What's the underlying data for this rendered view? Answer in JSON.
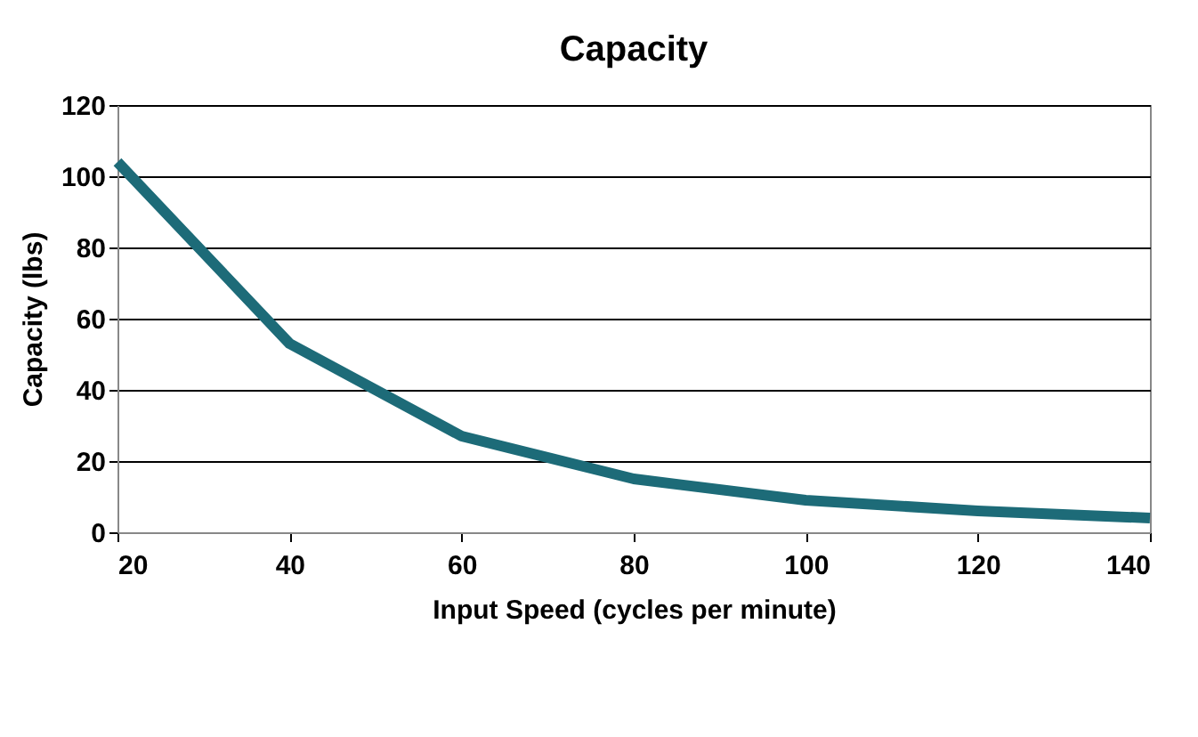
{
  "chart_data": {
    "type": "line",
    "title": "Capacity",
    "xlabel": "Input Speed (cycles per minute)",
    "ylabel": "Capacity (lbs)",
    "x": [
      20,
      40,
      60,
      80,
      100,
      120,
      140
    ],
    "series": [
      {
        "color": "#1d6b78",
        "values": [
          104,
          53,
          27,
          15,
          9,
          6,
          4
        ]
      }
    ],
    "xlim": [
      20,
      140
    ],
    "xticks": [
      20,
      40,
      60,
      80,
      100,
      120,
      140
    ],
    "ylim": [
      0,
      120
    ],
    "yticks": [
      0,
      20,
      40,
      60,
      80,
      100,
      120
    ],
    "grid": "y",
    "marker": "none",
    "line_style": "solid"
  }
}
